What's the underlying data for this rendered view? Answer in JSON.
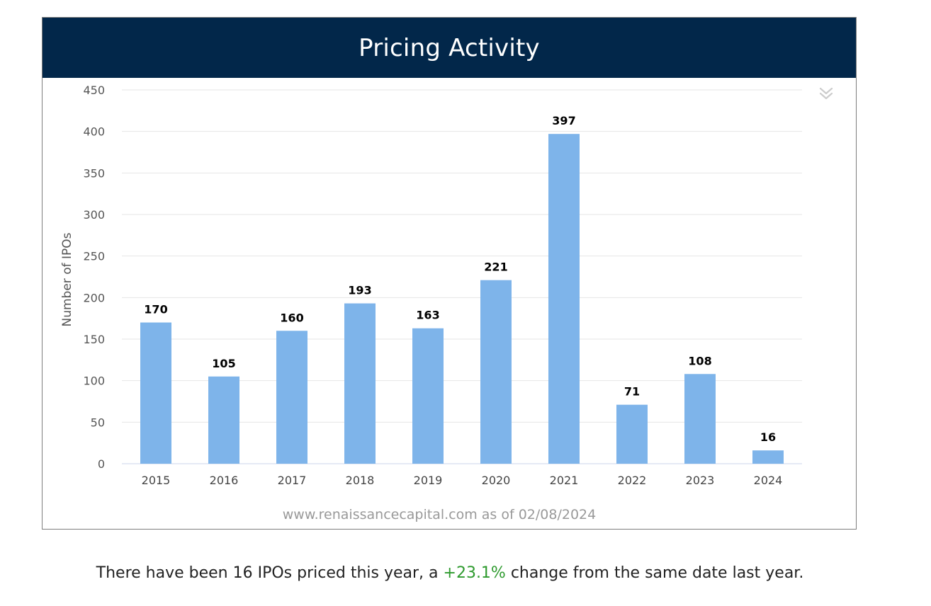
{
  "header": {
    "title": "Pricing Activity"
  },
  "chart_data": {
    "type": "bar",
    "title": "Pricing Activity",
    "xlabel": "",
    "ylabel": "Number of IPOs",
    "categories": [
      "2015",
      "2016",
      "2017",
      "2018",
      "2019",
      "2020",
      "2021",
      "2022",
      "2023",
      "2024"
    ],
    "values": [
      170,
      105,
      160,
      193,
      163,
      221,
      397,
      71,
      108,
      16
    ],
    "ylim": [
      0,
      450
    ],
    "yticks": [
      "0",
      "50",
      "100",
      "150",
      "200",
      "250",
      "300",
      "350",
      "400",
      "450"
    ],
    "grid": true,
    "legend": "none",
    "data_labels": [
      "170",
      "105",
      "160",
      "193",
      "163",
      "221",
      "397",
      "71",
      "108",
      "16"
    ],
    "credit": "www.renaissancecapital.com as of 02/08/2024",
    "bar_color": "#7eb4ea"
  },
  "menu": {
    "icon": "double-chevron-down-icon"
  },
  "summary": {
    "prefix": "There have been 16 IPOs priced this year, a ",
    "change": "+23.1%",
    "suffix": " change from the same date last year.",
    "change_color": "#2e9a2e"
  }
}
